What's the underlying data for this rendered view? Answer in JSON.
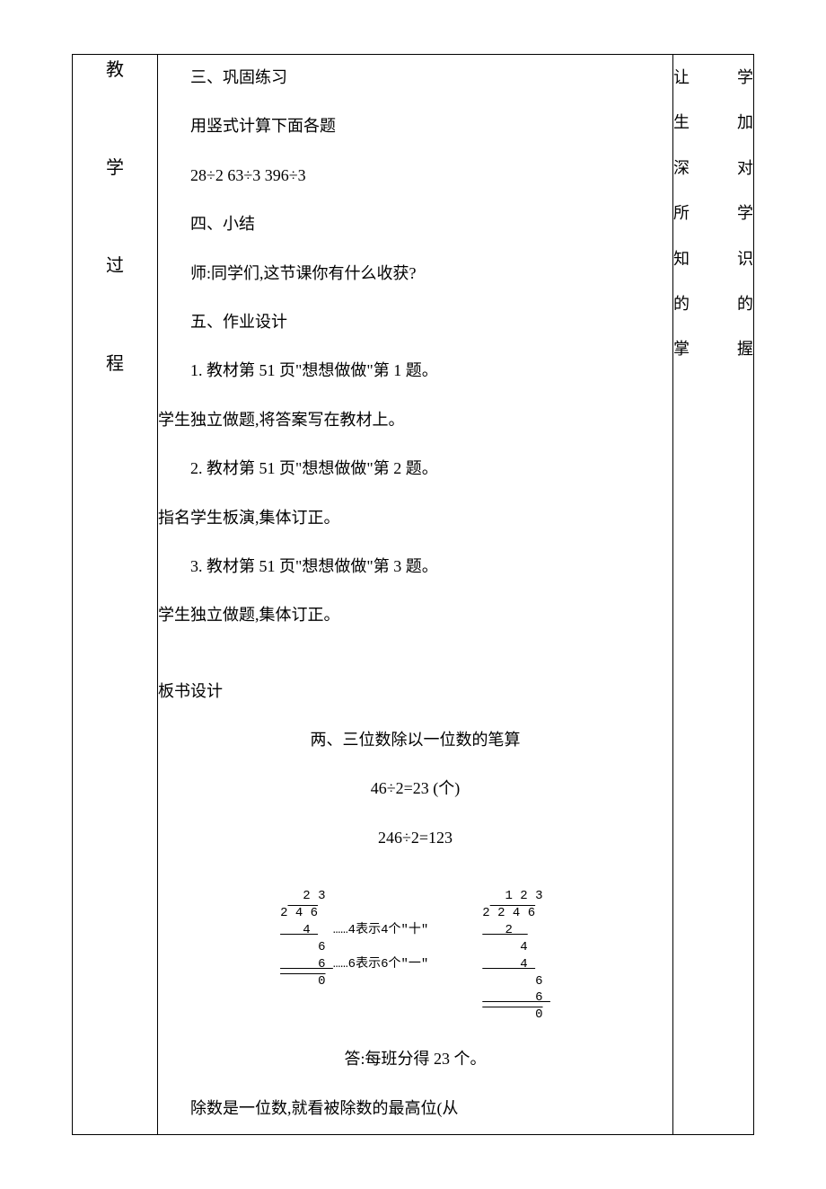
{
  "leftColumn": {
    "char1": "教",
    "char2": "学",
    "char3": "过",
    "char4": "程"
  },
  "rightColumn": {
    "line1": "让学",
    "line2": "生加",
    "line3": "深对",
    "line4": "所学",
    "line5": "知识",
    "line6": "的的",
    "line7": "掌握"
  },
  "content": {
    "l1": "三、巩固练习",
    "l2": "用竖式计算下面各题",
    "l3": "28÷2      63÷3      396÷3",
    "l4": "四、小结",
    "l5": "师:同学们,这节课你有什么收获?",
    "l6": "五、作业设计",
    "l7": "1. 教材第 51 页\"想想做做\"第 1 题。",
    "l8": "学生独立做题,将答案写在教材上。",
    "l9": "2. 教材第 51 页\"想想做做\"第 2 题。",
    "l10": "指名学生板演,集体订正。",
    "l11": "3. 教材第 51 页\"想想做做\"第 3 题。",
    "l12": "学生独立做题,集体订正。",
    "board_title": "板书设计",
    "board_sub": "两、三位数除以一位数的笔算",
    "eq1": "46÷2=23 (个)",
    "eq2": "246÷2=123",
    "answer": "答:每班分得 23 个。",
    "rule": "除数是一位数,就看被除数的最高位(从"
  },
  "diagram": {
    "left": {
      "r1": "   2 3",
      "r2_a": "2",
      "r2_b": " 4 6",
      "r3_a": "   4 ",
      "r3_note": "  ……4表示4个\"十\"",
      "r4": "     6",
      "r5_a": "     6 ",
      "r5_note": "……6表示6个\"一\"",
      "r6": "     0"
    },
    "right": {
      "r1": "   1 2 3",
      "r2_a": "2",
      "r2_b": " 2 4 6",
      "r3": "   2  ",
      "r4": "     4",
      "r5": "     4 ",
      "r6": "       6",
      "r7": "       6 ",
      "r8": "       0"
    }
  },
  "styles": {
    "body_font_size": 18,
    "diagram_font_size": 14,
    "text_color": "#000000",
    "border_color": "#000000",
    "background_color": "#ffffff"
  }
}
